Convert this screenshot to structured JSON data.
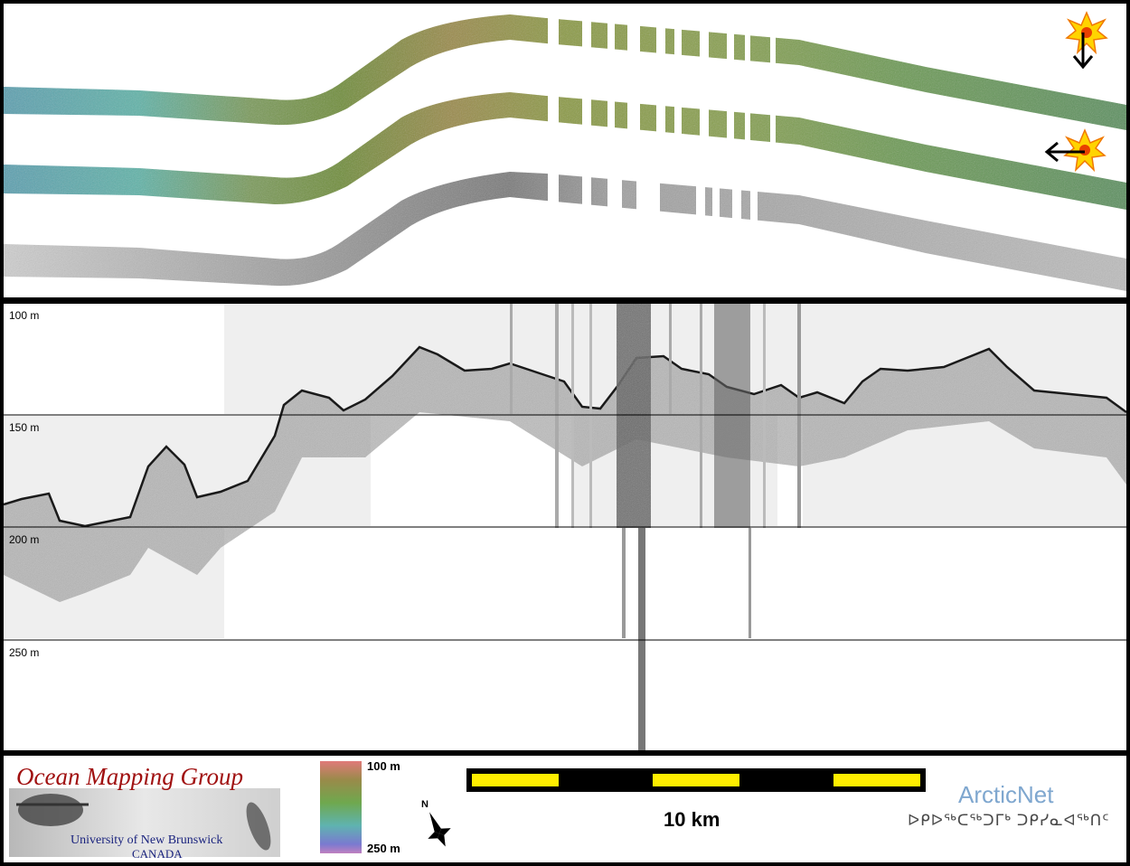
{
  "profile": {
    "depth_labels": [
      "100 m",
      "150 m",
      "200 m",
      "250 m"
    ]
  },
  "legend": {
    "logo_title": "Ocean Mapping Group",
    "logo_university": "University of New Brunswick",
    "logo_country": "CANADA",
    "colorbar_top": "100 m",
    "colorbar_bottom": "250 m",
    "north_label": "N",
    "scale_label": "10 km",
    "partner_name": "ArcticNet",
    "partner_syllabics": "ᐅᑭᐅᖅᑕᖅᑐᒥᒃ ᑐᑭᓯᓇᐊᖅᑎᑦ"
  },
  "colors": {
    "scale_yellow": "#ffee00",
    "logo_red": "#a01010",
    "logo_blue": "#1a237e",
    "arcticnet_blue": "#7fa7cf"
  }
}
